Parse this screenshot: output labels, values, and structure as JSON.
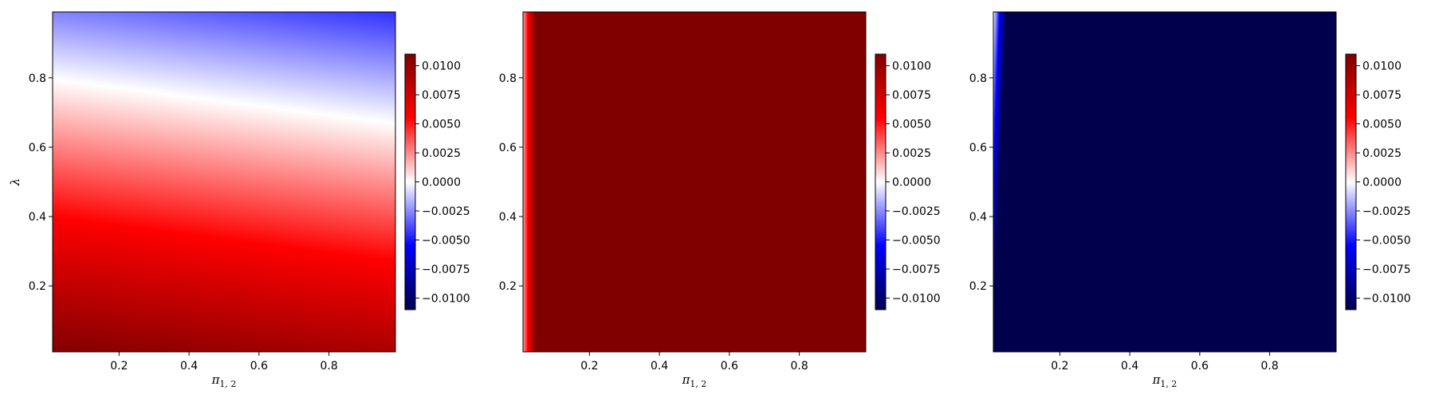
{
  "chart_data": [
    {
      "type": "heatmap",
      "title": "",
      "xlabel": "π",
      "xlabel_subscript": "1, 2",
      "ylabel": "λ",
      "xlim": [
        0.01,
        0.99
      ],
      "ylim": [
        0.01,
        0.99
      ],
      "xticks": [
        0.2,
        0.4,
        0.6,
        0.8
      ],
      "yticks": [
        0.2,
        0.4,
        0.6,
        0.8
      ],
      "xtick_labels": [
        "0.2",
        "0.4",
        "0.6",
        "0.8"
      ],
      "ytick_labels": [
        "0.2",
        "0.4",
        "0.6",
        "0.8"
      ],
      "colormap": "seismic",
      "clim": [
        -0.011,
        0.011
      ],
      "colorbar_ticks": [
        0.01,
        0.0075,
        0.005,
        0.0025,
        0,
        -0.0025,
        -0.005,
        -0.0075,
        -0.01
      ],
      "colorbar_labels": [
        "0.0100",
        "0.0075",
        "0.0050",
        "0.0025",
        "0.0000",
        "−0.0025",
        "−0.0050",
        "−0.0075",
        "−0.0100"
      ],
      "pattern": "value decreases with λ and slightly with π: ≈ +0.011 at λ=0, ≈ +0.0055 at λ=0.4, ≈ 0 along the line λ ≈ 0.92 − 0.13·π, ≈ −0.0045 at λ=0.99, π=0.99",
      "samples": [
        {
          "x": 0.5,
          "y": 0.01,
          "value": 0.011
        },
        {
          "x": 0.5,
          "y": 0.2,
          "value": 0.0082
        },
        {
          "x": 0.5,
          "y": 0.4,
          "value": 0.0055
        },
        {
          "x": 0.5,
          "y": 0.6,
          "value": 0.0024
        },
        {
          "x": 0.5,
          "y": 0.8,
          "value": -0.0007
        },
        {
          "x": 0.99,
          "y": 0.99,
          "value": -0.0045
        },
        {
          "x": 0.01,
          "y": 0.99,
          "value": -0.0012
        }
      ]
    },
    {
      "type": "heatmap",
      "title": "",
      "xlabel": "π",
      "xlabel_subscript": "1, 2",
      "ylabel": "",
      "xlim": [
        0.01,
        0.99
      ],
      "ylim": [
        0.01,
        0.99
      ],
      "xticks": [
        0.2,
        0.4,
        0.6,
        0.8
      ],
      "yticks": [
        0.2,
        0.4,
        0.6,
        0.8
      ],
      "xtick_labels": [
        "0.2",
        "0.4",
        "0.6",
        "0.8"
      ],
      "ytick_labels": [
        "0.2",
        "0.4",
        "0.6",
        "0.8"
      ],
      "colormap": "seismic",
      "clim": [
        -0.011,
        0.011
      ],
      "colorbar_ticks": [
        0.01,
        0.0075,
        0.005,
        0.0025,
        0,
        -0.0025,
        -0.005,
        -0.0075,
        -0.01
      ],
      "colorbar_labels": [
        "0.0100",
        "0.0075",
        "0.0050",
        "0.0025",
        "0.0000",
        "−0.0025",
        "−0.0050",
        "−0.0075",
        "−0.0100"
      ],
      "pattern": "saturated positive (≥ 0.011) everywhere except a thin strip near π ≈ 0.01–0.05 where values rise from ≈ 0.002 to saturation",
      "samples": [
        {
          "x": 0.01,
          "y": 0.5,
          "value": 0.002
        },
        {
          "x": 0.02,
          "y": 0.5,
          "value": 0.005
        },
        {
          "x": 0.035,
          "y": 0.5,
          "value": 0.0085
        },
        {
          "x": 0.05,
          "y": 0.5,
          "value": 0.011
        },
        {
          "x": 0.5,
          "y": 0.5,
          "value": 0.011
        }
      ]
    },
    {
      "type": "heatmap",
      "title": "",
      "xlabel": "π",
      "xlabel_subscript": "1, 2",
      "ylabel": "",
      "xlim": [
        0.01,
        0.99
      ],
      "ylim": [
        0.01,
        0.99
      ],
      "xticks": [
        0.2,
        0.4,
        0.6,
        0.8
      ],
      "yticks": [
        0.2,
        0.4,
        0.6,
        0.8
      ],
      "xtick_labels": [
        "0.2",
        "0.4",
        "0.6",
        "0.8"
      ],
      "ytick_labels": [
        "0.2",
        "0.4",
        "0.6",
        "0.8"
      ],
      "colormap": "seismic",
      "clim": [
        -0.011,
        0.011
      ],
      "colorbar_ticks": [
        0.01,
        0.0075,
        0.005,
        0.0025,
        0,
        -0.0025,
        -0.005,
        -0.0075,
        -0.01
      ],
      "colorbar_labels": [
        "0.0100",
        "0.0075",
        "0.0050",
        "0.0025",
        "0.0000",
        "−0.0025",
        "−0.0050",
        "−0.0075",
        "−0.0100"
      ],
      "pattern": "saturated negative (≤ −0.011) everywhere except a thin strip near π ≈ 0.01–0.04, near zero at the top-left corner",
      "samples": [
        {
          "x": 0.01,
          "y": 0.99,
          "value": 0.0
        },
        {
          "x": 0.01,
          "y": 0.5,
          "value": -0.005
        },
        {
          "x": 0.02,
          "y": 0.9,
          "value": -0.006
        },
        {
          "x": 0.04,
          "y": 0.9,
          "value": -0.011
        },
        {
          "x": 0.5,
          "y": 0.5,
          "value": -0.011
        }
      ]
    }
  ]
}
